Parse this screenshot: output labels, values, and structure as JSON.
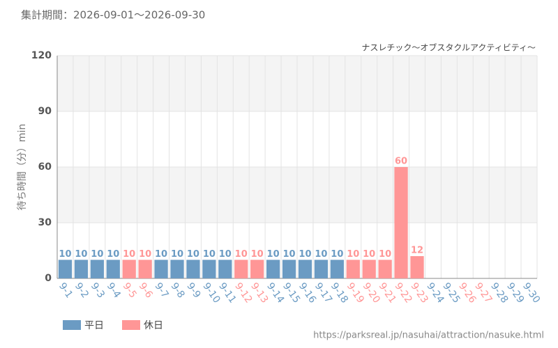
{
  "chart_data": {
    "type": "bar",
    "title": "集計期間：2026-09-01～2026-09-30",
    "subtitle": "ナスレチック～オブスタクルアクティビティ～",
    "y_label": "待ち時間（分）min",
    "source": "https://parksreal.jp/nasuhai/attraction/nasuke.html",
    "categories": [
      "9-1",
      "9-2",
      "9-3",
      "9-4",
      "9-5",
      "9-6",
      "9-7",
      "9-8",
      "9-9",
      "9-10",
      "9-11",
      "9-12",
      "9-13",
      "9-14",
      "9-15",
      "9-16",
      "9-17",
      "9-18",
      "9-19",
      "9-20",
      "9-21",
      "9-22",
      "9-23",
      "9-24",
      "9-25",
      "9-26",
      "9-27",
      "9-28",
      "9-29",
      "9-30"
    ],
    "values": [
      10,
      10,
      10,
      10,
      10,
      10,
      10,
      10,
      10,
      10,
      10,
      10,
      10,
      10,
      10,
      10,
      10,
      10,
      10,
      10,
      10,
      60,
      12,
      null,
      null,
      null,
      null,
      null,
      null,
      null
    ],
    "colors": [
      "#6b9bc3",
      "#6b9bc3",
      "#6b9bc3",
      "#6b9bc3",
      "#ff9696",
      "#ff9696",
      "#6b9bc3",
      "#6b9bc3",
      "#6b9bc3",
      "#6b9bc3",
      "#6b9bc3",
      "#ff9696",
      "#ff9696",
      "#6b9bc3",
      "#6b9bc3",
      "#6b9bc3",
      "#6b9bc3",
      "#6b9bc3",
      "#ff9696",
      "#ff9696",
      "#ff9696",
      "#ff9696",
      "#ff9696",
      "#6b9bc3",
      "#6b9bc3",
      "#ff9696",
      "#ff9696",
      "#6b9bc3",
      "#6b9bc3",
      "#6b9bc3"
    ],
    "legend": [
      {
        "name": "平日",
        "color": "#6b9bc3"
      },
      {
        "name": "休日",
        "color": "#ff9696"
      }
    ],
    "ylim": [
      0,
      120
    ],
    "yticks": [
      0,
      30,
      60,
      90,
      120
    ],
    "grid": true
  }
}
